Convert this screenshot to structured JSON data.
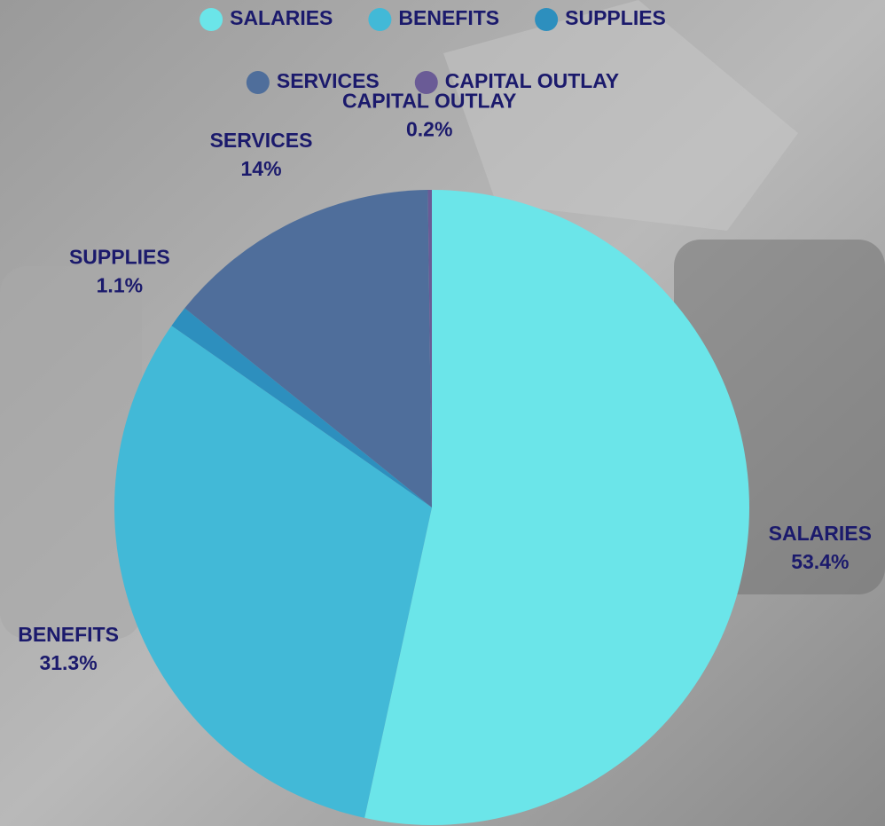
{
  "chart_data": {
    "type": "pie",
    "categories": [
      "SALARIES",
      "BENEFITS",
      "SUPPLIES",
      "SERVICES",
      "CAPITAL OUTLAY"
    ],
    "values": [
      53.4,
      31.3,
      1.1,
      14,
      0.2
    ],
    "value_labels": [
      "53.4%",
      "31.3%",
      "1.1%",
      "14%",
      "0.2%"
    ],
    "colors": [
      "#6be5e9",
      "#42b9d7",
      "#2d8fbe",
      "#4f6e9b",
      "#6a5b96"
    ]
  }
}
